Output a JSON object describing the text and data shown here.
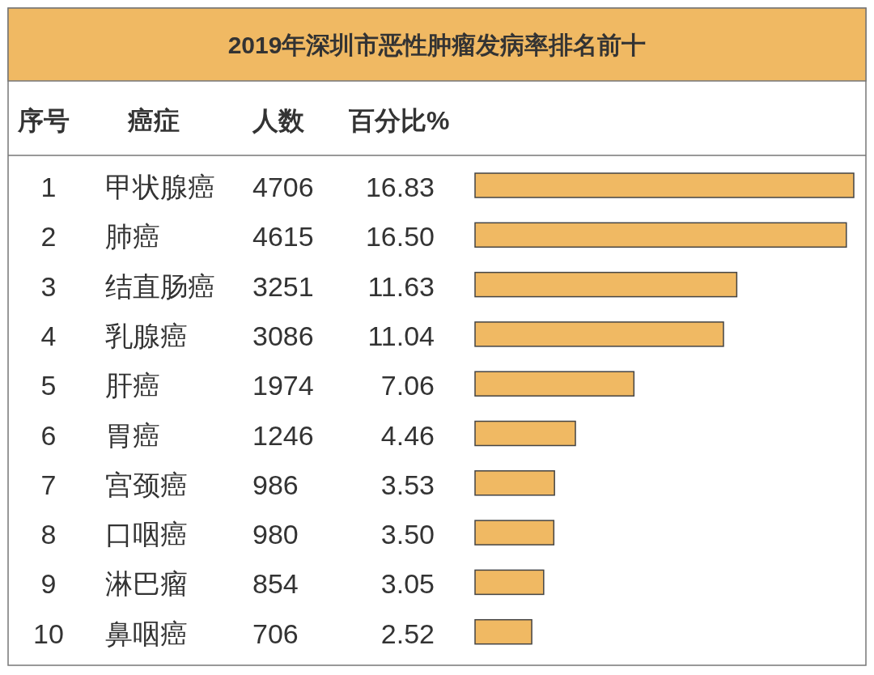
{
  "chart_data": {
    "type": "bar",
    "orientation": "horizontal",
    "title": "2019年深圳市恶性肿瘤发病率排名前十",
    "ylabel": "癌症",
    "categories": [
      "甲状腺癌",
      "肺癌",
      "结直肠癌",
      "乳腺癌",
      "肝癌",
      "胃癌",
      "宫颈癌",
      "口咽癌",
      "淋巴瘤",
      "鼻咽癌"
    ],
    "series": [
      {
        "name": "百分比%",
        "color": "#f0b963",
        "values": [
          16.83,
          16.5,
          11.63,
          11.04,
          7.06,
          4.46,
          3.53,
          3.5,
          3.05,
          2.52
        ],
        "value_labels": [
          "16.83",
          "16.50",
          "11.63",
          "11.04",
          "7.06",
          "4.46",
          "3.53",
          "3.50",
          "3.05",
          "2.52"
        ]
      }
    ],
    "annotations": [
      "序号",
      "人数",
      "1",
      "2",
      "3",
      "4",
      "5",
      "6",
      "7",
      "8",
      "9",
      "10",
      "4706",
      "4615",
      "3251",
      "3086",
      "1974",
      "1246",
      "986",
      "980",
      "854",
      "706"
    ]
  }
}
